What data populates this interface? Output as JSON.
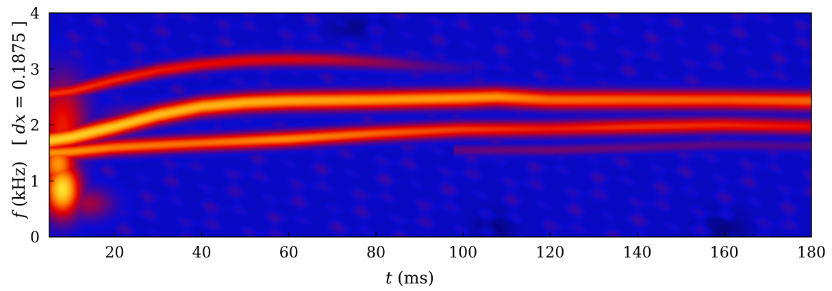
{
  "chart_data": {
    "type": "heatmap",
    "title": "",
    "xlabel": {
      "var": "t",
      "unit": " (ms)"
    },
    "ylabel": {
      "var": "f",
      "unit": " (kHz)",
      "note_pre": "[ ",
      "note_var": "dx",
      "note_post": " = 0.1875 ]"
    },
    "xlim": [
      5,
      180
    ],
    "ylim": [
      0,
      4
    ],
    "xticks": [
      20,
      40,
      60,
      80,
      100,
      120,
      140,
      160,
      180
    ],
    "yticks": [
      0,
      1,
      2,
      3,
      4
    ],
    "colormap": [
      "#000028",
      "#0a0ad2",
      "#e60000",
      "#ff8c00",
      "#ffe632"
    ],
    "background_color": "#1414d2",
    "ridges": [
      {
        "name": "upper",
        "width_khz": 0.09,
        "points": [
          [
            5,
            2.55
          ],
          [
            10,
            2.6
          ],
          [
            20,
            2.8
          ],
          [
            30,
            2.97
          ],
          [
            40,
            3.08
          ],
          [
            50,
            3.15
          ],
          [
            60,
            3.17
          ],
          [
            70,
            3.16
          ],
          [
            80,
            3.12
          ],
          [
            90,
            3.06
          ],
          [
            100,
            3.0
          ]
        ],
        "amps": [
          0.6,
          0.6,
          0.58,
          0.55,
          0.52,
          0.5,
          0.48,
          0.42,
          0.32,
          0.2,
          0.1
        ]
      },
      {
        "name": "middle",
        "width_khz": 0.12,
        "points": [
          [
            5,
            1.72
          ],
          [
            10,
            1.78
          ],
          [
            20,
            1.97
          ],
          [
            30,
            2.18
          ],
          [
            40,
            2.33
          ],
          [
            50,
            2.4
          ],
          [
            60,
            2.43
          ],
          [
            80,
            2.45
          ],
          [
            100,
            2.48
          ],
          [
            108,
            2.5
          ],
          [
            120,
            2.45
          ],
          [
            140,
            2.45
          ],
          [
            160,
            2.45
          ],
          [
            180,
            2.43
          ]
        ],
        "amps": [
          0.95,
          0.95,
          0.93,
          0.9,
          0.88,
          0.87,
          0.85,
          0.82,
          0.82,
          0.8,
          0.72,
          0.7,
          0.68,
          0.7
        ]
      },
      {
        "name": "lower",
        "width_khz": 0.1,
        "points": [
          [
            5,
            1.5
          ],
          [
            10,
            1.52
          ],
          [
            20,
            1.6
          ],
          [
            40,
            1.68
          ],
          [
            60,
            1.75
          ],
          [
            80,
            1.85
          ],
          [
            100,
            1.92
          ],
          [
            120,
            1.93
          ],
          [
            140,
            1.97
          ],
          [
            160,
            2.0
          ],
          [
            180,
            1.97
          ]
        ],
        "amps": [
          0.8,
          0.8,
          0.75,
          0.72,
          0.78,
          0.7,
          0.62,
          0.55,
          0.6,
          0.58,
          0.52
        ]
      },
      {
        "name": "faint-lower",
        "width_khz": 0.07,
        "points": [
          [
            100,
            1.55
          ],
          [
            120,
            1.55
          ],
          [
            140,
            1.6
          ],
          [
            160,
            1.65
          ],
          [
            180,
            1.62
          ]
        ],
        "amps": [
          0.22,
          0.25,
          0.22,
          0.2,
          0.18
        ]
      }
    ],
    "spots": [
      {
        "t": 8,
        "f": 0.85,
        "st": 3,
        "sf": 0.35,
        "amp": 1.0
      },
      {
        "t": 7,
        "f": 1.3,
        "st": 3,
        "sf": 0.3,
        "amp": 0.8
      },
      {
        "t": 8,
        "f": 2.0,
        "st": 4,
        "sf": 0.6,
        "amp": 0.55
      },
      {
        "t": 14,
        "f": 0.6,
        "st": 4,
        "sf": 0.2,
        "amp": 0.35
      },
      {
        "t": 25,
        "f": 2.15,
        "st": 6,
        "sf": 0.15,
        "amp": 0.25
      }
    ]
  }
}
